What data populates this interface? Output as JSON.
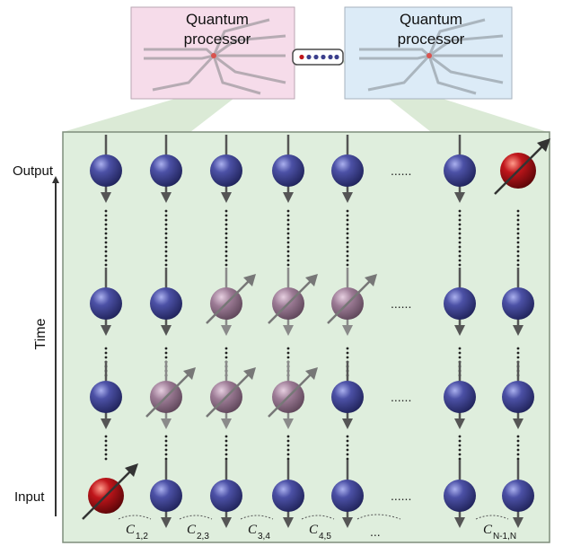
{
  "processors": [
    {
      "label_line1": "Quantum",
      "label_line2": "processor",
      "tint": "#f6dcea"
    },
    {
      "label_line1": "Quantum",
      "label_line2": "processor",
      "tint": "#dcebf7"
    }
  ],
  "axis": {
    "output_label": "Output",
    "input_label": "Input",
    "time_label": "Time"
  },
  "lattice": {
    "columns": 7,
    "rows": [
      {
        "states": [
          "blue",
          "blue",
          "blue",
          "blue",
          "blue",
          "gap",
          "red"
        ]
      },
      {
        "states": [
          "blue",
          "blue",
          "purple",
          "purple",
          "purple",
          "gap",
          "blue"
        ]
      },
      {
        "states": [
          "blue",
          "purple",
          "purple",
          "purple",
          "blue",
          "gap",
          "blue"
        ]
      },
      {
        "states": [
          "red",
          "blue",
          "blue",
          "blue",
          "blue",
          "gap",
          "blue"
        ]
      }
    ],
    "ellipsis": "......"
  },
  "couplings": [
    {
      "text": "C",
      "sub": "1,2"
    },
    {
      "text": "C",
      "sub": "2,3"
    },
    {
      "text": "C",
      "sub": "3,4"
    },
    {
      "text": "C",
      "sub": "4,5"
    },
    {
      "text": "...",
      "sub": ""
    },
    {
      "text": "C",
      "sub": "N-1,N"
    }
  ],
  "colors": {
    "panel": "#dfeedd",
    "panel_border": "#7f8d7c",
    "spin_blue": "#3b3f8c",
    "spin_purple": "#9a7a93",
    "spin_red": "#b3141a",
    "arrow": "#555555"
  }
}
